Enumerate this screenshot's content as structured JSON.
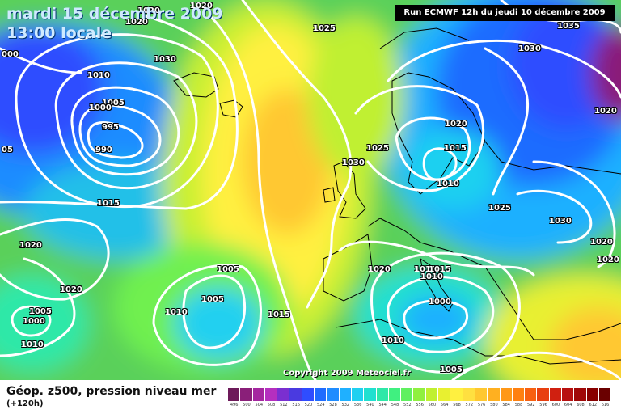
{
  "header": {
    "date": "mardi 15 décembre 2009",
    "local_time": "13:00 locale",
    "run_info": "Run ECMWF 12h du jeudi 10 décembre 2009"
  },
  "copyright": "Copyright 2009 Meteociel.fr",
  "legend": {
    "title": "Géop. z500, pression niveau mer",
    "subtitle": "(+120h)",
    "scale_values": [
      "496",
      "500",
      "504",
      "508",
      "512",
      "516",
      "520",
      "524",
      "528",
      "532",
      "536",
      "540",
      "544",
      "548",
      "552",
      "556",
      "560",
      "564",
      "568",
      "572",
      "576",
      "580",
      "584",
      "588",
      "592",
      "596",
      "600",
      "604",
      "608",
      "612",
      "616"
    ],
    "scale_colors": [
      "#6d1a5a",
      "#8a1f79",
      "#a526a0",
      "#b52fbf",
      "#7a2fd0",
      "#4a3ae0",
      "#2f4dff",
      "#1f6cff",
      "#1f8cff",
      "#1fb0ff",
      "#1fd0f0",
      "#20e0d0",
      "#2ee8a8",
      "#40f080",
      "#60f060",
      "#90f040",
      "#c0f030",
      "#e8f030",
      "#fff040",
      "#ffe040",
      "#ffc830",
      "#ffb020",
      "#ff9818",
      "#ff8010",
      "#f86010",
      "#e84010",
      "#d02010",
      "#b81010",
      "#a00808",
      "#880000",
      "#6a0000"
    ]
  },
  "isobar_labels": [
    {
      "text": "1020"
    },
    {
      "text": "1020"
    },
    {
      "text": "1020"
    },
    {
      "text": "1025"
    },
    {
      "text": "1030"
    },
    {
      "text": "1010"
    },
    {
      "text": "1005"
    },
    {
      "text": "1000"
    },
    {
      "text": "995"
    },
    {
      "text": "990"
    },
    {
      "text": "1015"
    },
    {
      "text": "1020"
    },
    {
      "text": "1020"
    },
    {
      "text": "1005"
    },
    {
      "text": "1000"
    },
    {
      "text": "1010"
    },
    {
      "text": "1005"
    },
    {
      "text": "1005"
    },
    {
      "text": "1010"
    },
    {
      "text": "1015"
    },
    {
      "text": "1030"
    },
    {
      "text": "1025"
    },
    {
      "text": "1020"
    },
    {
      "text": "1015"
    },
    {
      "text": "1010"
    },
    {
      "text": "1025"
    },
    {
      "text": "1030"
    },
    {
      "text": "1035"
    },
    {
      "text": "1030"
    },
    {
      "text": "1020"
    },
    {
      "text": "1020"
    },
    {
      "text": "1020"
    },
    {
      "text": "1010"
    },
    {
      "text": "1015"
    },
    {
      "text": "1010"
    },
    {
      "text": "1000"
    },
    {
      "text": "1010"
    },
    {
      "text": "1005"
    },
    {
      "text": "1020"
    },
    {
      "text": "000"
    },
    {
      "text": "05"
    }
  ]
}
